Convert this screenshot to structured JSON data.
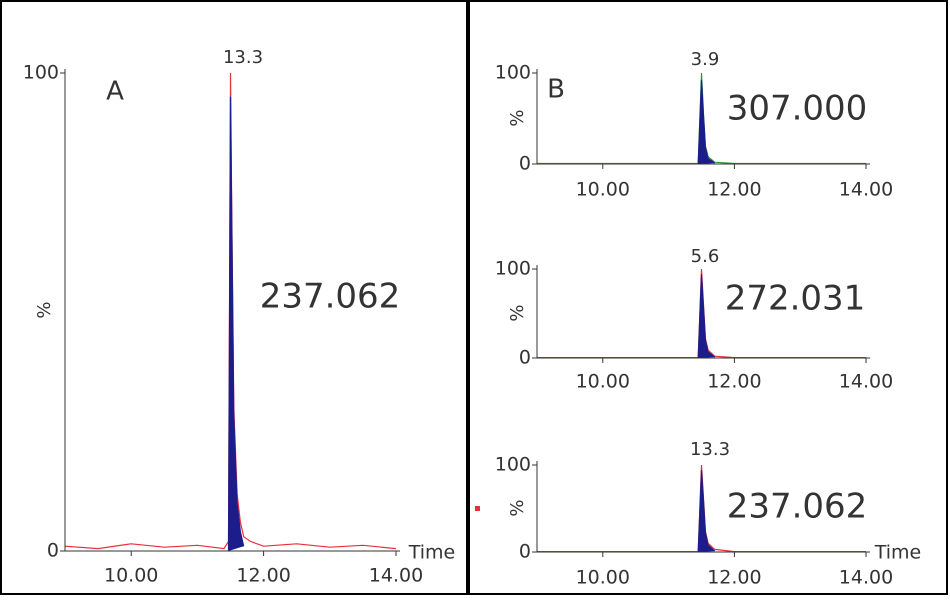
{
  "chart_data": [
    {
      "type": "line",
      "panel": "A",
      "peak_label": "13.3",
      "annotation": "237.062",
      "y_label": "%",
      "x_label": "Time",
      "x": [
        9.0,
        9.5,
        10.0,
        10.5,
        11.0,
        11.4,
        11.47,
        11.5,
        11.52,
        11.55,
        11.6,
        11.65,
        11.7,
        11.8,
        12.0,
        12.5,
        13.0,
        13.5,
        14.0
      ],
      "series": [
        {
          "color": "#e8303a",
          "values": [
            1,
            0.5,
            1.5,
            0.8,
            1.2,
            0.5,
            2,
            100,
            70,
            30,
            12,
            6,
            3,
            2,
            1,
            1.5,
            0.8,
            1.2,
            0.5
          ]
        },
        {
          "color": "#1c1c8a",
          "fill": true,
          "values": [
            null,
            null,
            null,
            null,
            null,
            null,
            0,
            95,
            68,
            28,
            10,
            4,
            1,
            null,
            null,
            null,
            null,
            null,
            null
          ]
        }
      ],
      "xlim": [
        9,
        14
      ],
      "ylim": [
        0,
        100
      ],
      "yticks": [
        0,
        100
      ],
      "xticks": [
        {
          "value": 10,
          "label": "10.00"
        },
        {
          "value": 12,
          "label": "12.00"
        },
        {
          "value": 14,
          "label": "14.00"
        }
      ]
    },
    {
      "type": "line",
      "panel": "B",
      "peak_label": "3.9",
      "annotation": "307.000",
      "y_label": "%",
      "x": [
        9.0,
        10.0,
        11.0,
        11.45,
        11.5,
        11.53,
        11.56,
        11.6,
        11.7,
        12.0,
        13.0,
        14.0
      ],
      "series": [
        {
          "color": "#2e9a3a",
          "values": [
            0.5,
            0.5,
            0.5,
            0.5,
            100,
            55,
            20,
            8,
            2,
            0.5,
            0.5,
            0.5
          ]
        },
        {
          "color": "#1c1c8a",
          "fill": true,
          "values": [
            null,
            null,
            null,
            0,
            92,
            52,
            18,
            6,
            1,
            null,
            null,
            null
          ]
        }
      ],
      "xlim": [
        9,
        14
      ],
      "ylim": [
        0,
        100
      ],
      "yticks": [
        0,
        100
      ],
      "xticks": [
        {
          "value": 10,
          "label": "10.00"
        },
        {
          "value": 12,
          "label": "12.00"
        },
        {
          "value": 14,
          "label": "14.00"
        }
      ]
    },
    {
      "type": "line",
      "peak_label": "5.6",
      "annotation": "272.031",
      "y_label": "%",
      "x": [
        9.0,
        10.0,
        11.0,
        11.45,
        11.5,
        11.53,
        11.56,
        11.6,
        11.7,
        12.0,
        13.0,
        14.0
      ],
      "series": [
        {
          "color": "#e8303a",
          "values": [
            0.5,
            0.5,
            0.5,
            0.5,
            100,
            60,
            22,
            9,
            2,
            0.5,
            0.5,
            0.5
          ]
        },
        {
          "color": "#1c1c8a",
          "fill": true,
          "values": [
            null,
            null,
            null,
            0,
            94,
            56,
            20,
            7,
            1,
            null,
            null,
            null
          ]
        }
      ],
      "xlim": [
        9,
        14
      ],
      "ylim": [
        0,
        100
      ],
      "yticks": [
        0,
        100
      ],
      "xticks": [
        {
          "value": 10,
          "label": "10.00"
        },
        {
          "value": 12,
          "label": "12.00"
        },
        {
          "value": 14,
          "label": "14.00"
        }
      ]
    },
    {
      "type": "line",
      "peak_label": "13.3",
      "annotation": "237.062",
      "y_label": "%",
      "x_label": "Time",
      "x": [
        9.0,
        10.0,
        11.0,
        11.45,
        11.5,
        11.53,
        11.56,
        11.6,
        11.7,
        12.0,
        13.0,
        14.0
      ],
      "series": [
        {
          "color": "#e8303a",
          "values": [
            0.5,
            0.5,
            0.5,
            0.5,
            100,
            62,
            24,
            10,
            3,
            0.5,
            0.5,
            0.5
          ]
        },
        {
          "color": "#1c1c8a",
          "fill": true,
          "values": [
            null,
            null,
            null,
            0,
            94,
            58,
            22,
            8,
            1,
            null,
            null,
            null
          ]
        }
      ],
      "xlim": [
        9,
        14
      ],
      "ylim": [
        0,
        100
      ],
      "yticks": [
        0,
        100
      ],
      "xticks": [
        {
          "value": 10,
          "label": "10.00"
        },
        {
          "value": 12,
          "label": "12.00"
        },
        {
          "value": 14,
          "label": "14.00"
        }
      ]
    }
  ]
}
